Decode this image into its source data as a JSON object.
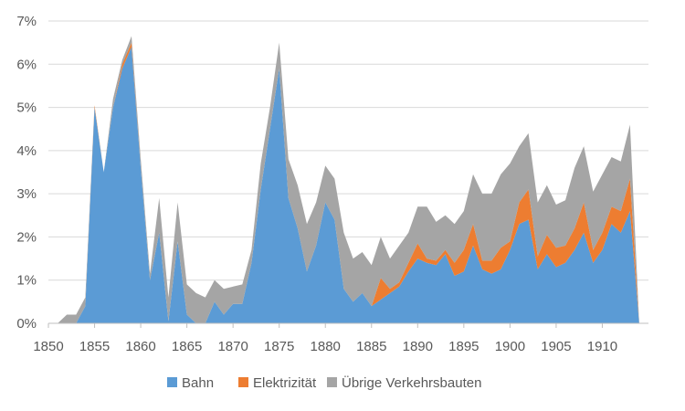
{
  "chart_data": {
    "type": "area",
    "stacked": true,
    "x": [
      1850,
      1851,
      1852,
      1853,
      1854,
      1855,
      1856,
      1857,
      1858,
      1859,
      1860,
      1861,
      1862,
      1863,
      1864,
      1865,
      1866,
      1867,
      1868,
      1869,
      1870,
      1871,
      1872,
      1873,
      1874,
      1875,
      1876,
      1877,
      1878,
      1879,
      1880,
      1881,
      1882,
      1883,
      1884,
      1885,
      1886,
      1887,
      1888,
      1889,
      1890,
      1891,
      1892,
      1893,
      1894,
      1895,
      1896,
      1897,
      1898,
      1899,
      1900,
      1901,
      1902,
      1903,
      1904,
      1905,
      1906,
      1907,
      1908,
      1909,
      1910,
      1911,
      1912,
      1913,
      1914
    ],
    "series": [
      {
        "name": "Bahn",
        "color": "#5b9bd5",
        "values": [
          0,
          0,
          0,
          0,
          0.4,
          5.0,
          3.5,
          5.0,
          5.9,
          6.4,
          3.6,
          1.0,
          2.1,
          0.05,
          1.9,
          0.2,
          0,
          0,
          0.5,
          0.2,
          0.45,
          0.45,
          1.4,
          3.1,
          4.5,
          5.9,
          2.9,
          2.2,
          1.2,
          1.8,
          2.8,
          2.4,
          0.8,
          0.5,
          0.7,
          0.4,
          0.55,
          0.7,
          0.85,
          1.2,
          1.5,
          1.4,
          1.35,
          1.6,
          1.1,
          1.2,
          1.8,
          1.25,
          1.15,
          1.25,
          1.7,
          2.3,
          2.4,
          1.25,
          1.6,
          1.3,
          1.4,
          1.7,
          2.1,
          1.4,
          1.7,
          2.3,
          2.1,
          2.6,
          0
        ]
      },
      {
        "name": "Elektrizität",
        "color": "#ed7d31",
        "values": [
          0,
          0,
          0,
          0,
          0,
          0.05,
          0,
          0,
          0.1,
          0.1,
          0,
          0,
          0,
          0,
          0,
          0,
          0,
          0,
          0,
          0,
          0,
          0,
          0,
          0,
          0,
          0,
          0,
          0,
          0,
          0,
          0,
          0,
          0,
          0,
          0,
          0,
          0.5,
          0.1,
          0.1,
          0.2,
          0.35,
          0.1,
          0.1,
          0.1,
          0.3,
          0.5,
          0.5,
          0.2,
          0.3,
          0.5,
          0.2,
          0.5,
          0.7,
          0.3,
          0.45,
          0.45,
          0.4,
          0.5,
          0.7,
          0.3,
          0.4,
          0.4,
          0.5,
          0.75,
          0
        ]
      },
      {
        "name": "Übrige Verkehrsbauten",
        "color": "#a5a5a5",
        "values": [
          0,
          0,
          0.2,
          0.2,
          0.2,
          0,
          0,
          0.2,
          0.1,
          0.15,
          0.2,
          0.15,
          0.8,
          0.55,
          0.9,
          0.7,
          0.7,
          0.6,
          0.5,
          0.6,
          0.4,
          0.45,
          0.3,
          0.6,
          0.5,
          0.6,
          0.9,
          1.0,
          1.1,
          1.0,
          0.85,
          0.95,
          1.3,
          1.0,
          0.95,
          0.95,
          0.95,
          0.7,
          0.85,
          0.7,
          0.85,
          1.2,
          0.9,
          0.8,
          0.9,
          0.9,
          1.15,
          1.55,
          1.55,
          1.7,
          1.8,
          1.3,
          1.3,
          1.25,
          1.15,
          1.0,
          1.05,
          1.4,
          1.3,
          1.35,
          1.35,
          1.15,
          1.15,
          1.25,
          0
        ]
      }
    ],
    "x_ticks": [
      "1850",
      "1855",
      "1860",
      "1865",
      "1870",
      "1875",
      "1880",
      "1885",
      "1890",
      "1895",
      "1900",
      "1905",
      "1910"
    ],
    "y_ticks": [
      "0%",
      "1%",
      "2%",
      "3%",
      "4%",
      "5%",
      "6%",
      "7%"
    ],
    "xlim": [
      1850,
      1915
    ],
    "ylim": [
      0,
      7
    ],
    "grid": "horizontal",
    "legend_position": "bottom",
    "title": "",
    "xlabel": "",
    "ylabel": ""
  }
}
